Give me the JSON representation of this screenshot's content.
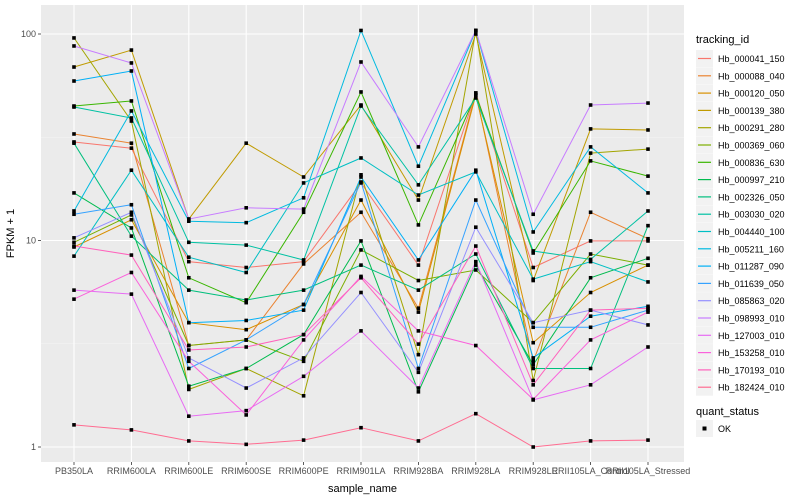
{
  "chart_data": {
    "type": "line",
    "title": "",
    "xlabel": "sample_name",
    "ylabel": "FPKM + 1",
    "yscale": "log10",
    "ylim": [
      0.72,
      125
    ],
    "yticks": [
      1,
      10,
      100
    ],
    "ytick_labels": [
      "1",
      "10",
      "100"
    ],
    "grid": true,
    "categories": [
      "PB350LA",
      "RRIM600LA",
      "RRIM600LE",
      "RRIM600SE",
      "RRIM600PE",
      "RRIM901LA",
      "RRIM928BA",
      "RRIM928LA",
      "RRIM928LE",
      "RRII105LA_Control",
      "RRII105LA_Stressed"
    ],
    "legend": {
      "position": "right",
      "color_title": "tracking_id",
      "shape_title": "quant_status",
      "shape_items": [
        "OK"
      ]
    },
    "series": [
      {
        "name": "Hb_000041_150",
        "color": "#F8766D",
        "values": [
          30.0,
          28.0,
          7.9,
          7.4,
          7.9,
          19.0,
          7.6,
          51.8,
          7.4,
          9.95,
          9.95
        ]
      },
      {
        "name": "Hb_000088_040",
        "color": "#EA8331",
        "values": [
          32.8,
          29.6,
          3.1,
          3.3,
          7.7,
          13.7,
          4.7,
          51.8,
          2.6,
          13.7,
          10.2
        ]
      },
      {
        "name": "Hb_000120_050",
        "color": "#D89000",
        "values": [
          9.3,
          12.6,
          4.0,
          3.7,
          4.9,
          15.7,
          4.5,
          50.7,
          3.2,
          5.6,
          7.6
        ]
      },
      {
        "name": "Hb_000139_380",
        "color": "#C09B00",
        "values": [
          69.2,
          83.6,
          12.7,
          29.6,
          20.3,
          45.3,
          15.7,
          100,
          6.4,
          34.7,
          34.3
        ]
      },
      {
        "name": "Hb_000291_280",
        "color": "#A3A500",
        "values": [
          95.7,
          37.9,
          1.9,
          2.4,
          1.77,
          20.8,
          2.8,
          104,
          2.1,
          26.5,
          27.7
        ]
      },
      {
        "name": "Hb_000369_060",
        "color": "#7CAE00",
        "values": [
          9.8,
          13.3,
          3.1,
          3.3,
          2.6,
          9.0,
          6.4,
          7.2,
          4.0,
          8.6,
          7.6
        ]
      },
      {
        "name": "Hb_000836_630",
        "color": "#39B600",
        "values": [
          44.8,
          47.4,
          6.6,
          5.0,
          13.7,
          52.4,
          11.9,
          50.7,
          8.7,
          24.3,
          20.5
        ]
      },
      {
        "name": "Hb_000997_210",
        "color": "#00BB4E",
        "values": [
          17.0,
          11.5,
          1.97,
          2.4,
          3.5,
          9.95,
          1.85,
          7.6,
          2.5,
          6.6,
          8.2
        ]
      },
      {
        "name": "Hb_002326_050",
        "color": "#00BF7D",
        "values": [
          29.6,
          10.5,
          5.75,
          5.15,
          5.75,
          7.6,
          5.75,
          8.6,
          2.4,
          2.4,
          11.8
        ]
      },
      {
        "name": "Hb_003030_020",
        "color": "#00C1A3",
        "values": [
          44.3,
          39.2,
          9.8,
          9.5,
          8.05,
          44.8,
          18.6,
          49.0,
          8.9,
          8.1,
          13.9
        ]
      },
      {
        "name": "Hb_004440_100",
        "color": "#00BFC4",
        "values": [
          8.4,
          21.9,
          8.3,
          7.0,
          19.0,
          25.1,
          16.6,
          21.5,
          6.5,
          7.9,
          6.3
        ]
      },
      {
        "name": "Hb_005211_160",
        "color": "#00BAE0",
        "values": [
          13.9,
          42.4,
          12.4,
          12.2,
          16.1,
          104,
          22.9,
          104,
          11.0,
          28.4,
          17.0
        ]
      },
      {
        "name": "Hb_011287_090",
        "color": "#00B0F6",
        "values": [
          59.2,
          66.2,
          4.0,
          4.1,
          4.6,
          20.3,
          8.05,
          21.9,
          2.7,
          4.3,
          4.8
        ]
      },
      {
        "name": "Hb_011639_050",
        "color": "#35A2FF",
        "values": [
          13.4,
          14.9,
          2.4,
          3.3,
          4.9,
          19.2,
          2.4,
          15.7,
          3.8,
          3.8,
          4.6
        ]
      },
      {
        "name": "Hb_085863_020",
        "color": "#9590FF",
        "values": [
          10.3,
          13.7,
          2.7,
          1.93,
          2.7,
          5.6,
          2.3,
          11.6,
          4.0,
          4.6,
          3.9
        ]
      },
      {
        "name": "Hb_098993_010",
        "color": "#C77CFF",
        "values": [
          87.5,
          72.4,
          12.7,
          14.4,
          14.2,
          73.2,
          28.4,
          104,
          13.4,
          45.3,
          46.3
        ]
      },
      {
        "name": "Hb_127003_010",
        "color": "#E76BF3",
        "values": [
          5.75,
          5.5,
          1.41,
          1.5,
          2.2,
          3.65,
          1.93,
          7.9,
          1.69,
          2.0,
          3.05
        ]
      },
      {
        "name": "Hb_153258_010",
        "color": "#FA62DB",
        "values": [
          5.2,
          7.0,
          2.6,
          1.43,
          3.3,
          6.7,
          3.65,
          3.1,
          1.7,
          3.3,
          4.5
        ]
      },
      {
        "name": "Hb_170193_010",
        "color": "#FF62BC",
        "values": [
          9.4,
          8.5,
          2.95,
          3.05,
          3.5,
          6.6,
          3.15,
          9.4,
          2.0,
          4.6,
          4.7
        ]
      },
      {
        "name": "Hb_182424_010",
        "color": "#FF6C91",
        "values": [
          1.28,
          1.21,
          1.07,
          1.03,
          1.08,
          1.24,
          1.07,
          1.45,
          1.0,
          1.07,
          1.08
        ]
      }
    ]
  }
}
